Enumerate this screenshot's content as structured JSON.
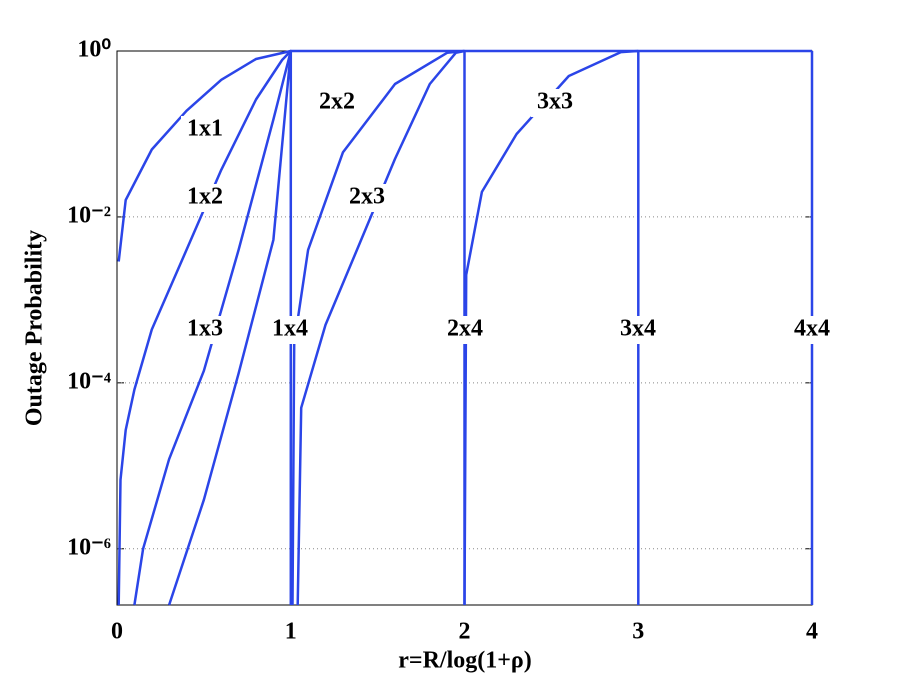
{
  "chart_data": {
    "type": "line",
    "x_label": "r=R/log(1+ρ)",
    "y_label": "Outage Probability",
    "log_y": true,
    "grid": "y",
    "xlim": [
      0,
      4
    ],
    "xticks": [
      0,
      1,
      2,
      3,
      4
    ],
    "ylim": [
      2.1e-07,
      1
    ],
    "yticks": [
      {
        "value": 1,
        "label": "10⁰"
      },
      {
        "value": 0.01,
        "label": "10⁻²"
      },
      {
        "value": 0.0001,
        "label": "10⁻⁴"
      },
      {
        "value": 1e-06,
        "label": "10⁻⁶"
      }
    ],
    "series": [
      {
        "name": "1x1",
        "color": "#2b45e8",
        "x": [
          0.01,
          0.05,
          0.2,
          0.4,
          0.6,
          0.8,
          1,
          4
        ],
        "values": [
          0.0029,
          0.016,
          0.065,
          0.19,
          0.45,
          0.8,
          1,
          1
        ]
      },
      {
        "name": "1x2",
        "color": "#2b45e8",
        "x": [
          0.01,
          0.02,
          0.05,
          0.1,
          0.2,
          0.4,
          0.6,
          0.8,
          0.95,
          1
        ],
        "values": [
          2.1e-07,
          6.8e-06,
          2.7e-05,
          8.3e-05,
          0.00044,
          0.004,
          0.037,
          0.26,
          0.78,
          1
        ]
      },
      {
        "name": "1x3",
        "color": "#2b45e8",
        "x": [
          0.1,
          0.15,
          0.3,
          0.5,
          0.7,
          0.9,
          1
        ],
        "values": [
          2.1e-07,
          1e-06,
          1.2e-05,
          0.00014,
          0.004,
          0.15,
          1
        ]
      },
      {
        "name": "1x4",
        "color": "#2b45e8",
        "x": [
          0.3,
          0.5,
          0.7,
          0.9,
          1,
          1
        ],
        "values": [
          2.1e-07,
          3.9e-06,
          0.00013,
          0.0053,
          1,
          2.1e-07
        ]
      },
      {
        "name": "2x2",
        "color": "#2b45e8",
        "x": [
          1.01,
          1.02,
          1.1,
          1.3,
          1.6,
          1.9,
          2
        ],
        "values": [
          2.1e-07,
          0.0003,
          0.004,
          0.06,
          0.4,
          0.95,
          1
        ]
      },
      {
        "name": "2x3",
        "color": "#2b45e8",
        "x": [
          1.04,
          1.06,
          1.2,
          1.4,
          1.6,
          1.8,
          1.95,
          2
        ],
        "values": [
          2.1e-07,
          5e-05,
          0.0005,
          0.005,
          0.05,
          0.4,
          0.95,
          1
        ]
      },
      {
        "name": "2x4",
        "color": "#2b45e8",
        "x": [
          2,
          2
        ],
        "values": [
          2.1e-07,
          1
        ]
      },
      {
        "name": "3x3",
        "color": "#2b45e8",
        "x": [
          2,
          2.01,
          2.1,
          2.3,
          2.6,
          2.9,
          3
        ],
        "values": [
          2.1e-07,
          0.002,
          0.02,
          0.1,
          0.5,
          0.97,
          1
        ]
      },
      {
        "name": "3x4",
        "color": "#2b45e8",
        "x": [
          3,
          3
        ],
        "values": [
          2.1e-07,
          1
        ]
      },
      {
        "name": "4x4",
        "color": "#2b45e8",
        "x": [
          4,
          4
        ],
        "values": [
          2.1e-07,
          1
        ]
      }
    ]
  }
}
